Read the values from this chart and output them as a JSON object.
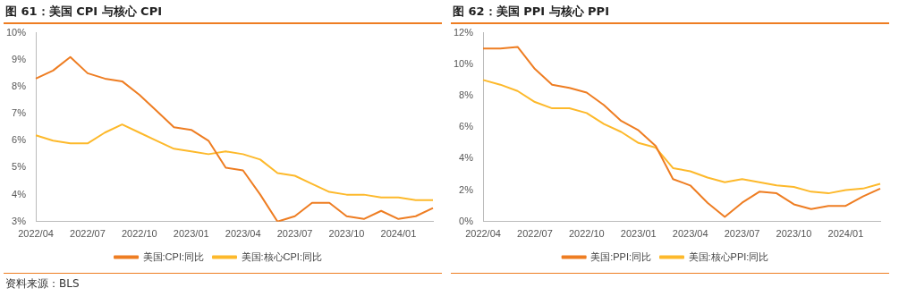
{
  "chart_data": [
    {
      "type": "line",
      "title": "图 61：美国 CPI 与核心 CPI",
      "categories": [
        "2022/04",
        null,
        null,
        "2022/07",
        null,
        null,
        "2022/10",
        null,
        null,
        "2023/01",
        null,
        null,
        "2023/04",
        null,
        null,
        "2023/07",
        null,
        null,
        "2023/10",
        null,
        null,
        "2024/01",
        null,
        null
      ],
      "series": [
        {
          "name": "美国:CPI:同比",
          "color": "#ee7d22",
          "values": [
            8.3,
            8.6,
            9.1,
            8.5,
            8.3,
            8.2,
            7.7,
            7.1,
            6.5,
            6.4,
            6.0,
            5.0,
            4.9,
            4.0,
            3.0,
            3.2,
            3.7,
            3.7,
            3.2,
            3.1,
            3.4,
            3.1,
            3.2,
            3.5
          ]
        },
        {
          "name": "美国:核心CPI:同比",
          "color": "#fdb92b",
          "values": [
            6.2,
            6.0,
            5.9,
            5.9,
            6.3,
            6.6,
            6.3,
            6.0,
            5.7,
            5.6,
            5.5,
            5.6,
            5.5,
            5.3,
            4.8,
            4.7,
            4.4,
            4.1,
            4.0,
            4.0,
            3.9,
            3.9,
            3.8,
            3.8
          ]
        }
      ],
      "ylim": [
        3,
        10
      ],
      "yticks": [
        {
          "value": 3,
          "label": "3%"
        },
        {
          "value": 4,
          "label": "4%"
        },
        {
          "value": 5,
          "label": "5%"
        },
        {
          "value": 6,
          "label": "6%"
        },
        {
          "value": 7,
          "label": "7%"
        },
        {
          "value": 8,
          "label": "8%"
        },
        {
          "value": 9,
          "label": "9%"
        },
        {
          "value": 10,
          "label": "10%"
        }
      ],
      "legend": "bottom",
      "annotations": [
        "资料来源：BLS"
      ]
    },
    {
      "type": "line",
      "title": "图 62：美国 PPI 与核心 PPI",
      "categories": [
        "2022/04",
        null,
        null,
        "2022/07",
        null,
        null,
        "2022/10",
        null,
        null,
        "2023/01",
        null,
        null,
        "2023/04",
        null,
        null,
        "2023/07",
        null,
        null,
        "2023/10",
        null,
        null,
        "2024/01",
        null,
        null
      ],
      "series": [
        {
          "name": "美国:PPI:同比",
          "color": "#ee7d22",
          "values": [
            11.0,
            11.0,
            11.1,
            9.7,
            8.7,
            8.5,
            8.2,
            7.4,
            6.4,
            5.8,
            4.8,
            2.7,
            2.3,
            1.2,
            0.3,
            1.2,
            1.9,
            1.8,
            1.1,
            0.8,
            1.0,
            1.0,
            1.6,
            2.1
          ]
        },
        {
          "name": "美国:核心PPI:同比",
          "color": "#fdb92b",
          "values": [
            9.0,
            8.7,
            8.3,
            7.6,
            7.2,
            7.2,
            6.9,
            6.2,
            5.7,
            5.0,
            4.7,
            3.4,
            3.2,
            2.8,
            2.5,
            2.7,
            2.5,
            2.3,
            2.2,
            1.9,
            1.8,
            2.0,
            2.1,
            2.4
          ]
        }
      ],
      "ylim": [
        0,
        12
      ],
      "yticks": [
        {
          "value": 0,
          "label": "0%"
        },
        {
          "value": 2,
          "label": "2%"
        },
        {
          "value": 4,
          "label": "4%"
        },
        {
          "value": 6,
          "label": "6%"
        },
        {
          "value": 8,
          "label": "8%"
        },
        {
          "value": 10,
          "label": "10%"
        },
        {
          "value": 12,
          "label": "12%"
        }
      ],
      "legend": "bottom"
    }
  ]
}
